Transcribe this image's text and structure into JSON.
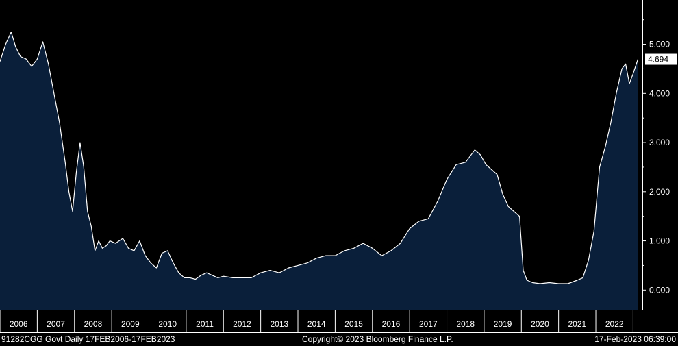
{
  "chart_data": {
    "type": "area",
    "security": "91282CGG Govt",
    "frequency": "Daily",
    "date_range": "17FEB2006-17FEB2023",
    "x_labels": [
      "2006",
      "2007",
      "2008",
      "2009",
      "2010",
      "2011",
      "2012",
      "2013",
      "2014",
      "2015",
      "2016",
      "2017",
      "2018",
      "2019",
      "2020",
      "2021",
      "2022"
    ],
    "y_ticks": [
      "0.000",
      "1.000",
      "2.000",
      "3.000",
      "4.000",
      "5.000"
    ],
    "ylim": [
      -0.4,
      5.9
    ],
    "xlim": [
      2006.0,
      2023.25
    ],
    "last_value": "4.694",
    "series": [
      {
        "x": [
          2006.0,
          2006.15,
          2006.3,
          2006.42,
          2006.55,
          2006.7,
          2006.85,
          2007.0,
          2007.15,
          2007.3,
          2007.45,
          2007.6,
          2007.75,
          2007.85,
          2007.95,
          2008.05,
          2008.15,
          2008.25,
          2008.35,
          2008.45,
          2008.55,
          2008.65,
          2008.75,
          2008.85,
          2008.95,
          2009.1,
          2009.3,
          2009.45,
          2009.6,
          2009.75,
          2009.9,
          2010.05,
          2010.2,
          2010.35,
          2010.5,
          2010.65,
          2010.8,
          2010.95,
          2011.1,
          2011.25,
          2011.4,
          2011.55,
          2011.7,
          2011.85,
          2012.0,
          2012.25,
          2012.5,
          2012.75,
          2013.0,
          2013.25,
          2013.5,
          2013.75,
          2014.0,
          2014.25,
          2014.5,
          2014.75,
          2015.0,
          2015.25,
          2015.5,
          2015.75,
          2016.0,
          2016.25,
          2016.5,
          2016.75,
          2017.0,
          2017.25,
          2017.5,
          2017.75,
          2018.0,
          2018.25,
          2018.5,
          2018.75,
          2018.9,
          2019.05,
          2019.2,
          2019.35,
          2019.5,
          2019.65,
          2019.8,
          2019.95,
          2020.05,
          2020.15,
          2020.3,
          2020.5,
          2020.75,
          2021.0,
          2021.25,
          2021.5,
          2021.65,
          2021.8,
          2021.95,
          2022.1,
          2022.25,
          2022.4,
          2022.55,
          2022.7,
          2022.8,
          2022.9,
          2023.0,
          2023.13
        ],
        "y": [
          4.65,
          5.0,
          5.25,
          4.95,
          4.75,
          4.7,
          4.55,
          4.7,
          5.05,
          4.6,
          4.0,
          3.4,
          2.6,
          2.0,
          1.6,
          2.4,
          3.0,
          2.5,
          1.6,
          1.3,
          0.8,
          1.0,
          0.85,
          0.9,
          1.0,
          0.95,
          1.05,
          0.85,
          0.8,
          1.0,
          0.7,
          0.55,
          0.45,
          0.75,
          0.8,
          0.55,
          0.35,
          0.25,
          0.25,
          0.22,
          0.3,
          0.35,
          0.3,
          0.25,
          0.28,
          0.25,
          0.25,
          0.25,
          0.35,
          0.4,
          0.35,
          0.45,
          0.5,
          0.55,
          0.65,
          0.7,
          0.7,
          0.8,
          0.85,
          0.95,
          0.85,
          0.7,
          0.8,
          0.95,
          1.25,
          1.4,
          1.45,
          1.8,
          2.25,
          2.55,
          2.6,
          2.85,
          2.75,
          2.55,
          2.45,
          2.35,
          1.95,
          1.7,
          1.6,
          1.5,
          0.4,
          0.2,
          0.15,
          0.13,
          0.15,
          0.13,
          0.13,
          0.2,
          0.25,
          0.6,
          1.2,
          2.5,
          2.9,
          3.4,
          4.0,
          4.5,
          4.6,
          4.2,
          4.4,
          4.694
        ]
      }
    ]
  },
  "footer": {
    "left": "91282CGG Govt  Daily 17FEB2006-17FEB2023",
    "center": "Copyright© 2023 Bloomberg Finance L.P.",
    "right": "17-Feb-2023 06:39:00"
  },
  "colors": {
    "background": "#000000",
    "fill": "#0a1f3a",
    "line": "#ffffff"
  }
}
